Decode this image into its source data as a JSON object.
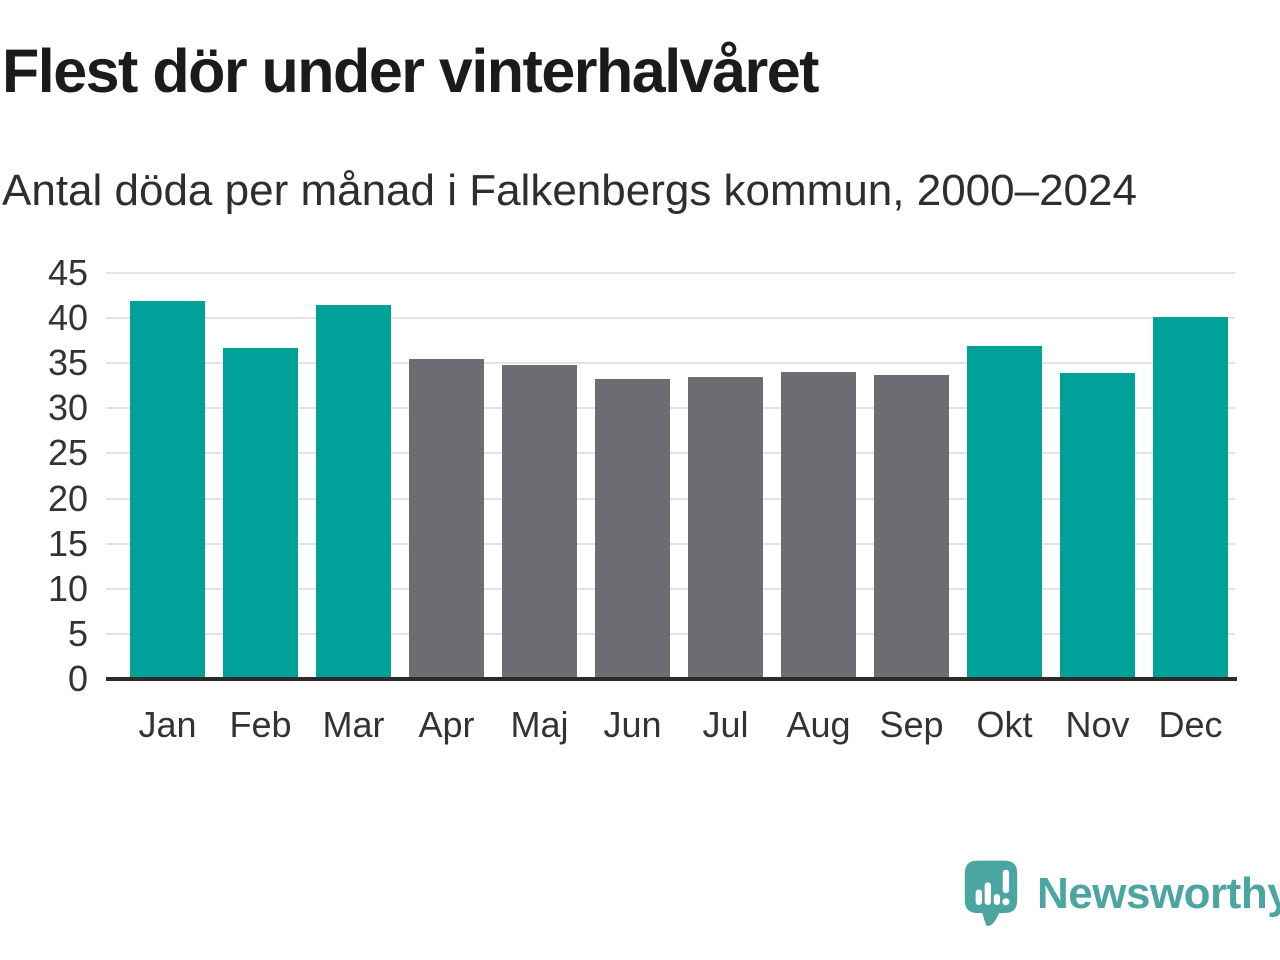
{
  "header": {
    "title": "Flest dör under vinterhalvåret",
    "subtitle": "Antal döda per månad i Falkenbergs kommun, 2000–2024"
  },
  "chart_data": {
    "type": "bar",
    "title": "Flest dör under vinterhalvåret",
    "subtitle": "Antal döda per månad i Falkenbergs kommun, 2000–2024",
    "categories": [
      "Jan",
      "Feb",
      "Mar",
      "Apr",
      "Maj",
      "Jun",
      "Jul",
      "Aug",
      "Sep",
      "Okt",
      "Nov",
      "Dec"
    ],
    "values": [
      41.7,
      36.5,
      41.2,
      35.3,
      34.6,
      33.0,
      33.3,
      33.8,
      33.5,
      36.7,
      33.7,
      39.9
    ],
    "bar_groups": [
      "winter",
      "winter",
      "winter",
      "summer",
      "summer",
      "summer",
      "summer",
      "summer",
      "summer",
      "winter",
      "winter",
      "winter"
    ],
    "xlabel": "",
    "ylabel": "",
    "ylim": [
      0,
      45
    ],
    "ytick_step": 5,
    "grid": true,
    "legend": "none",
    "group_colors": {
      "winter": "#00a199",
      "summer": "#6e6c73"
    }
  },
  "colors": {
    "teal_bar": "#00a199",
    "gray_bar": "#6e6c73",
    "gridline": "#e3e3e3",
    "axis_line": "#2b2b2b",
    "title_text": "#1b1b1b",
    "label_text": "#333333",
    "logo_teal": "#4ba6a2"
  },
  "footer": {
    "brand": "Newsworthy",
    "logo_icon": "speech-bubble-bar-chart-exclamation-icon"
  }
}
